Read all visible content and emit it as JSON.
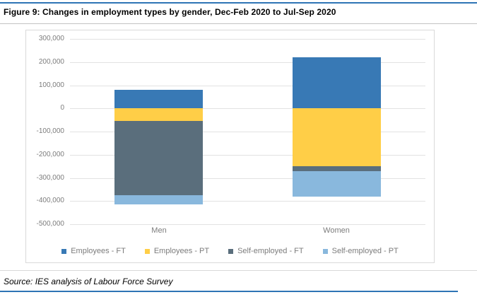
{
  "title": "Figure 9: Changes in employment types by gender, Dec-Feb 2020 to Jul-Sep 2020",
  "source_note": "Source: IES analysis of Labour Force Survey",
  "colors": {
    "accent_rule": "#2E74B5",
    "employees_ft": "#3879B5",
    "employees_pt": "#FFCE47",
    "self_employed_ft": "#5A6E7C",
    "self_employed_pt": "#89B8DD",
    "gridline": "#E2E2E2",
    "axis_text": "#7C7C7C"
  },
  "chart_data": {
    "type": "bar",
    "stacked": true,
    "title": "",
    "xlabel": "",
    "ylabel": "",
    "categories": [
      "Men",
      "Women"
    ],
    "series": [
      {
        "name": "Employees - FT",
        "color": "#3879B5",
        "values": [
          80000,
          220000
        ]
      },
      {
        "name": "Employees - PT",
        "color": "#FFCE47",
        "values": [
          -55000,
          -250000
        ]
      },
      {
        "name": "Self-employed - FT",
        "color": "#5A6E7C",
        "values": [
          -320000,
          -20000
        ]
      },
      {
        "name": "Self-employed - PT",
        "color": "#89B8DD",
        "values": [
          -40000,
          -110000
        ]
      }
    ],
    "ylim": [
      -500000,
      300000
    ],
    "ytick_step": 100000,
    "ytick_labels": [
      "300,000",
      "200,000",
      "100,000",
      "0",
      "-100,000",
      "-200,000",
      "-300,000",
      "-400,000",
      "-500,000"
    ],
    "grid": true,
    "legend_position": "bottom"
  }
}
